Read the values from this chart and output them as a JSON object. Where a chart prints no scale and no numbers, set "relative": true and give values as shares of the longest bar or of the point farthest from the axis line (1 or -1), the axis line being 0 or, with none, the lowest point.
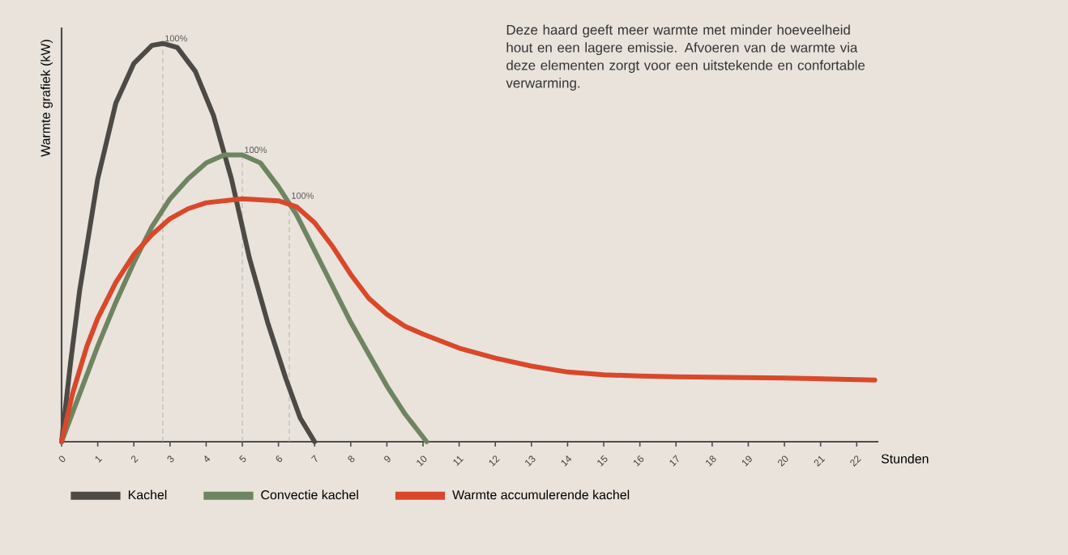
{
  "chart_data": {
    "type": "line",
    "relative": true,
    "ylabel": "Warmte grafiek (kW)",
    "xlabel": "Stunden",
    "xlim": [
      0,
      22.6
    ],
    "xticks": [
      0,
      1,
      2,
      3,
      4,
      5,
      6,
      7,
      8,
      9,
      10,
      11,
      12,
      13,
      14,
      15,
      16,
      17,
      18,
      19,
      20,
      21,
      22
    ],
    "legend": "bottom",
    "annotations": [
      "Deze haard geeft meer warmte met minder hoeveelheid hout en een lagere emissie. Afvoeren van de warmte via deze elementen zorgt voor een uitstekende en confortable verwarming.",
      {
        "text": "100%",
        "x": 2.8,
        "y": 1
      },
      {
        "text": "100%",
        "x": 5,
        "y": 0.72
      },
      {
        "text": "100%",
        "x": 6.3,
        "y": 0.605
      }
    ],
    "series": [
      {
        "name": "Kachel",
        "color": "#4d4a46",
        "x": [
          0,
          0.25,
          0.5,
          1,
          1.5,
          2,
          2.5,
          2.8,
          3.2,
          3.7,
          4.2,
          4.7,
          5.2,
          5.7,
          6.2,
          6.6,
          7
        ],
        "values": [
          0,
          0.2,
          0.38,
          0.66,
          0.85,
          0.95,
          0.995,
          1,
          0.99,
          0.93,
          0.82,
          0.66,
          0.46,
          0.3,
          0.16,
          0.06,
          0
        ]
      },
      {
        "name": "Convectie kachel",
        "color": "#6f8460",
        "x": [
          0,
          0.5,
          1,
          1.5,
          2,
          2.5,
          3,
          3.5,
          4,
          4.5,
          5,
          5.5,
          6,
          6.5,
          7,
          7.5,
          8,
          8.5,
          9,
          9.5,
          10.1
        ],
        "values": [
          0,
          0.12,
          0.24,
          0.35,
          0.45,
          0.54,
          0.61,
          0.66,
          0.7,
          0.72,
          0.72,
          0.7,
          0.64,
          0.57,
          0.48,
          0.39,
          0.3,
          0.22,
          0.14,
          0.07,
          0
        ]
      },
      {
        "name": "Warmte accumulerende kachel",
        "color": "#d9482a",
        "x": [
          0,
          0.3,
          0.7,
          1,
          1.5,
          2,
          2.5,
          3,
          3.5,
          4,
          5,
          6,
          6.5,
          7,
          7.5,
          8,
          8.5,
          9,
          9.5,
          10,
          11,
          12,
          13,
          14,
          15,
          16,
          17,
          18,
          19,
          20,
          21,
          22,
          22.5
        ],
        "values": [
          0,
          0.12,
          0.24,
          0.31,
          0.4,
          0.47,
          0.52,
          0.56,
          0.585,
          0.6,
          0.61,
          0.605,
          0.59,
          0.55,
          0.49,
          0.42,
          0.36,
          0.32,
          0.29,
          0.27,
          0.235,
          0.21,
          0.19,
          0.175,
          0.168,
          0.165,
          0.163,
          0.162,
          0.161,
          0.16,
          0.158,
          0.156,
          0.155
        ]
      }
    ]
  }
}
